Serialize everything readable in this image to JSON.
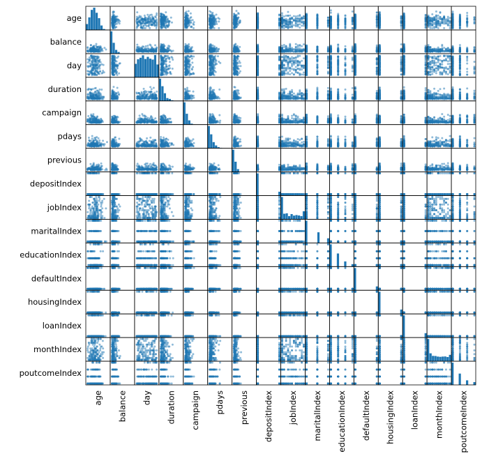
{
  "chart_data": {
    "type": "scatter_matrix",
    "variables": [
      "age",
      "balance",
      "day",
      "duration",
      "campaign",
      "pdays",
      "previous",
      "depositIndex",
      "jobIndex",
      "maritalIndex",
      "educationIndex",
      "defaultIndex",
      "housingIndex",
      "loanIndex",
      "monthIndex",
      "poutcomeIndex"
    ],
    "variable_kinds": {
      "age": "continuous",
      "balance": "continuous",
      "day": "uniform",
      "duration": "continuous",
      "campaign": "continuous",
      "pdays": "continuous",
      "previous": "continuous",
      "depositIndex": "categorical",
      "jobIndex": "categorical",
      "maritalIndex": "categorical",
      "educationIndex": "categorical",
      "defaultIndex": "categorical",
      "housingIndex": "categorical",
      "loanIndex": "categorical",
      "monthIndex": "categorical",
      "poutcomeIndex": "categorical"
    },
    "category_levels": {
      "depositIndex": 2,
      "jobIndex": 12,
      "maritalIndex": 3,
      "educationIndex": 4,
      "defaultIndex": 2,
      "housingIndex": 2,
      "loanIndex": 2,
      "monthIndex": 12,
      "poutcomeIndex": 4
    },
    "diagonal": "histogram",
    "off_diagonal": "scatter",
    "marker_color": "#1f77b4",
    "marker_alpha": 0.5
  }
}
